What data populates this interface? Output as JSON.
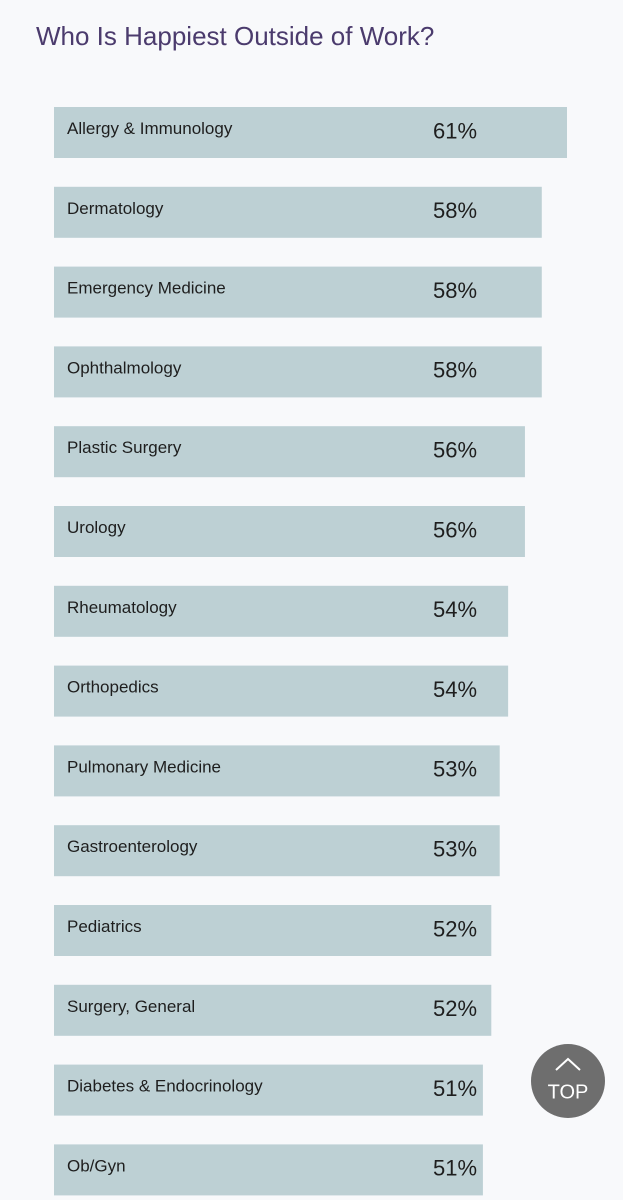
{
  "chart_data": {
    "type": "barh",
    "title": "Who Is Happiest Outside of Work?",
    "categories": [
      "Allergy & Immunology",
      "Dermatology",
      "Emergency Medicine",
      "Ophthalmology",
      "Plastic Surgery",
      "Urology",
      "Rheumatology",
      "Orthopedics",
      "Pulmonary Medicine",
      "Gastroenterology",
      "Pediatrics",
      "Surgery, General",
      "Diabetes & Endocrinology",
      "Ob/Gyn"
    ],
    "values": [
      61,
      58,
      58,
      58,
      56,
      56,
      54,
      54,
      53,
      53,
      52,
      52,
      51,
      51
    ],
    "value_labels": [
      "61%",
      "58%",
      "58%",
      "58%",
      "56%",
      "56%",
      "54%",
      "54%",
      "53%",
      "53%",
      "52%",
      "52%",
      "51%",
      "51%"
    ],
    "color": "#bdd0d4"
  },
  "top_button_label": "TOP"
}
